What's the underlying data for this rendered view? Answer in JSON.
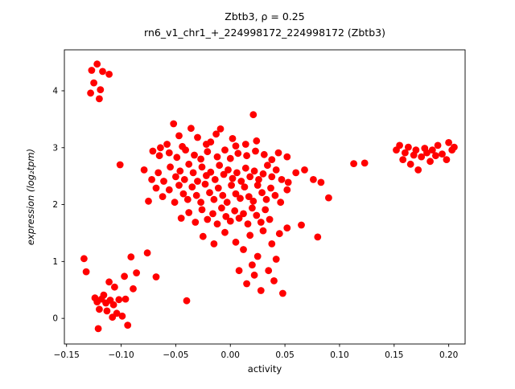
{
  "chart_data": {
    "type": "scatter",
    "title_line1": "Zbtb3, ρ = 0.25",
    "title_line2": "rn6_v1_chr1_+_224998172_224998172 (Zbtb3)",
    "xlabel": "activity",
    "ylabel": "expression (log₂tpm)",
    "xlim": [
      -0.152,
      0.215
    ],
    "ylim": [
      -0.45,
      4.72
    ],
    "grid": false,
    "legend": "none",
    "point_color": "#ff0000",
    "xtick_values": [
      -0.15,
      -0.1,
      -0.05,
      0.0,
      0.05,
      0.1,
      0.15,
      0.2
    ],
    "xtick_labels": [
      "−0.15",
      "−0.10",
      "−0.05",
      "0.00",
      "0.05",
      "0.10",
      "0.15",
      "0.20"
    ],
    "ytick_values": [
      0,
      1,
      2,
      3,
      4
    ],
    "ytick_labels": [
      "0",
      "1",
      "2",
      "3",
      "4"
    ],
    "points": [
      [
        -0.122,
        4.47
      ],
      [
        -0.127,
        4.36
      ],
      [
        -0.117,
        4.34
      ],
      [
        -0.111,
        4.29
      ],
      [
        -0.125,
        4.14
      ],
      [
        -0.119,
        4.02
      ],
      [
        -0.128,
        3.96
      ],
      [
        -0.12,
        3.86
      ],
      [
        -0.101,
        2.7
      ],
      [
        -0.134,
        1.05
      ],
      [
        -0.132,
        0.82
      ],
      [
        -0.124,
        0.36
      ],
      [
        -0.122,
        0.29
      ],
      [
        -0.12,
        0.16
      ],
      [
        -0.121,
        -0.18
      ],
      [
        -0.116,
        0.41
      ],
      [
        -0.114,
        0.27
      ],
      [
        -0.111,
        0.64
      ],
      [
        -0.11,
        0.32
      ],
      [
        -0.107,
        0.24
      ],
      [
        -0.106,
        0.55
      ],
      [
        -0.104,
        0.09
      ],
      [
        -0.102,
        0.33
      ],
      [
        -0.099,
        0.04
      ],
      [
        -0.097,
        0.74
      ],
      [
        -0.096,
        0.34
      ],
      [
        -0.094,
        -0.12
      ],
      [
        -0.091,
        1.08
      ],
      [
        -0.089,
        0.52
      ],
      [
        -0.086,
        0.8
      ],
      [
        -0.108,
        0.02
      ],
      [
        -0.113,
        0.13
      ],
      [
        -0.118,
        0.34
      ],
      [
        -0.076,
        1.15
      ],
      [
        -0.068,
        0.73
      ],
      [
        -0.04,
        0.31
      ],
      [
        -0.052,
        3.42
      ],
      [
        -0.047,
        3.21
      ],
      [
        -0.036,
        3.34
      ],
      [
        -0.03,
        3.18
      ],
      [
        -0.022,
        3.06
      ],
      [
        -0.013,
        3.24
      ],
      [
        -0.009,
        3.33
      ],
      [
        0.002,
        3.16
      ],
      [
        0.021,
        3.58
      ],
      [
        0.024,
        3.12
      ],
      [
        -0.058,
        3.06
      ],
      [
        -0.064,
        3.0
      ],
      [
        -0.044,
        3.02
      ],
      [
        -0.018,
        3.1
      ],
      [
        0.005,
        3.03
      ],
      [
        0.014,
        3.06
      ],
      [
        -0.071,
        2.94
      ],
      [
        -0.065,
        2.86
      ],
      [
        -0.056,
        2.91
      ],
      [
        -0.049,
        2.83
      ],
      [
        -0.041,
        2.96
      ],
      [
        -0.033,
        2.87
      ],
      [
        -0.027,
        2.8
      ],
      [
        -0.021,
        2.93
      ],
      [
        -0.012,
        2.84
      ],
      [
        -0.005,
        2.96
      ],
      [
        0.0,
        2.81
      ],
      [
        0.007,
        2.9
      ],
      [
        0.015,
        2.86
      ],
      [
        0.023,
        2.94
      ],
      [
        0.031,
        2.88
      ],
      [
        0.038,
        2.79
      ],
      [
        0.044,
        2.91
      ],
      [
        0.052,
        2.84
      ],
      [
        -0.079,
        2.61
      ],
      [
        -0.072,
        2.44
      ],
      [
        -0.066,
        2.56
      ],
      [
        -0.061,
        2.41
      ],
      [
        -0.055,
        2.66
      ],
      [
        -0.05,
        2.49
      ],
      [
        -0.046,
        2.59
      ],
      [
        -0.042,
        2.44
      ],
      [
        -0.038,
        2.71
      ],
      [
        -0.034,
        2.56
      ],
      [
        -0.03,
        2.41
      ],
      [
        -0.026,
        2.66
      ],
      [
        -0.022,
        2.51
      ],
      [
        -0.018,
        2.57
      ],
      [
        -0.014,
        2.44
      ],
      [
        -0.01,
        2.69
      ],
      [
        -0.006,
        2.53
      ],
      [
        -0.002,
        2.61
      ],
      [
        0.002,
        2.46
      ],
      [
        0.006,
        2.56
      ],
      [
        0.01,
        2.41
      ],
      [
        0.014,
        2.64
      ],
      [
        0.018,
        2.49
      ],
      [
        0.022,
        2.59
      ],
      [
        0.026,
        2.44
      ],
      [
        0.03,
        2.54
      ],
      [
        0.034,
        2.69
      ],
      [
        0.038,
        2.49
      ],
      [
        0.042,
        2.61
      ],
      [
        0.047,
        2.44
      ],
      [
        0.053,
        2.39
      ],
      [
        0.06,
        2.56
      ],
      [
        0.068,
        2.61
      ],
      [
        0.076,
        2.44
      ],
      [
        0.083,
        2.39
      ],
      [
        -0.075,
        2.06
      ],
      [
        -0.068,
        2.29
      ],
      [
        -0.062,
        2.14
      ],
      [
        -0.056,
        2.26
      ],
      [
        -0.051,
        2.04
      ],
      [
        -0.047,
        2.34
      ],
      [
        -0.043,
        2.19
      ],
      [
        -0.039,
        2.09
      ],
      [
        -0.035,
        2.31
      ],
      [
        -0.031,
        2.16
      ],
      [
        -0.027,
        2.04
      ],
      [
        -0.023,
        2.36
      ],
      [
        -0.019,
        2.21
      ],
      [
        -0.015,
        2.09
      ],
      [
        -0.011,
        2.29
      ],
      [
        -0.007,
        2.16
      ],
      [
        -0.003,
        2.04
      ],
      [
        0.001,
        2.34
      ],
      [
        0.005,
        2.19
      ],
      [
        0.009,
        2.11
      ],
      [
        0.013,
        2.31
      ],
      [
        0.017,
        2.14
      ],
      [
        0.021,
        2.06
      ],
      [
        0.025,
        2.34
      ],
      [
        0.029,
        2.21
      ],
      [
        0.033,
        2.09
      ],
      [
        0.037,
        2.29
      ],
      [
        0.041,
        2.16
      ],
      [
        0.046,
        2.04
      ],
      [
        0.052,
        2.26
      ],
      [
        0.09,
        2.12
      ],
      [
        -0.045,
        1.76
      ],
      [
        -0.038,
        1.86
      ],
      [
        -0.032,
        1.69
      ],
      [
        -0.026,
        1.91
      ],
      [
        -0.021,
        1.74
      ],
      [
        -0.016,
        1.84
      ],
      [
        -0.012,
        1.66
      ],
      [
        -0.008,
        1.94
      ],
      [
        -0.004,
        1.79
      ],
      [
        0.0,
        1.71
      ],
      [
        0.004,
        1.89
      ],
      [
        0.008,
        1.76
      ],
      [
        0.012,
        1.84
      ],
      [
        0.016,
        1.66
      ],
      [
        0.02,
        1.94
      ],
      [
        0.024,
        1.81
      ],
      [
        0.028,
        1.69
      ],
      [
        0.032,
        1.91
      ],
      [
        0.036,
        1.74
      ],
      [
        0.065,
        1.64
      ],
      [
        0.08,
        1.43
      ],
      [
        -0.025,
        1.44
      ],
      [
        -0.015,
        1.31
      ],
      [
        -0.005,
        1.51
      ],
      [
        0.005,
        1.34
      ],
      [
        0.012,
        1.21
      ],
      [
        0.018,
        1.46
      ],
      [
        0.025,
        1.09
      ],
      [
        0.03,
        1.54
      ],
      [
        0.038,
        1.31
      ],
      [
        0.045,
        1.49
      ],
      [
        0.052,
        1.59
      ],
      [
        0.042,
        1.04
      ],
      [
        0.008,
        0.84
      ],
      [
        0.015,
        0.61
      ],
      [
        0.022,
        0.76
      ],
      [
        0.028,
        0.49
      ],
      [
        0.035,
        0.84
      ],
      [
        0.04,
        0.66
      ],
      [
        0.048,
        0.44
      ],
      [
        0.02,
        0.94
      ],
      [
        0.113,
        2.72
      ],
      [
        0.123,
        2.73
      ],
      [
        0.152,
        2.96
      ],
      [
        0.155,
        3.04
      ],
      [
        0.158,
        2.79
      ],
      [
        0.16,
        2.91
      ],
      [
        0.163,
        3.01
      ],
      [
        0.165,
        2.71
      ],
      [
        0.168,
        2.87
      ],
      [
        0.17,
        2.96
      ],
      [
        0.172,
        2.61
      ],
      [
        0.175,
        2.84
      ],
      [
        0.178,
        2.99
      ],
      [
        0.18,
        2.91
      ],
      [
        0.183,
        2.76
      ],
      [
        0.185,
        2.96
      ],
      [
        0.188,
        2.86
      ],
      [
        0.19,
        3.04
      ],
      [
        0.194,
        2.89
      ],
      [
        0.198,
        2.79
      ],
      [
        0.2,
        3.09
      ],
      [
        0.203,
        2.96
      ],
      [
        0.205,
        3.01
      ]
    ]
  }
}
